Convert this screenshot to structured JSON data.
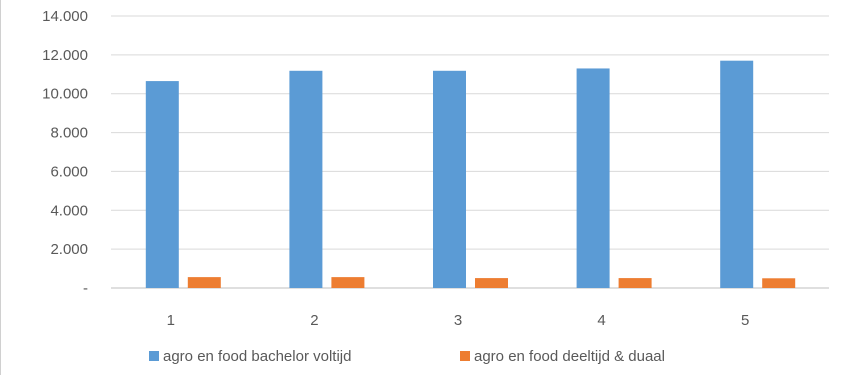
{
  "chart_data": {
    "type": "bar",
    "categories": [
      "1",
      "2",
      "3",
      "4",
      "5"
    ],
    "series": [
      {
        "name": "agro en food bachelor voltijd",
        "values": [
          10650,
          11180,
          11180,
          11300,
          11700
        ],
        "color": "#5b9bd5"
      },
      {
        "name": "agro en food deeltijd & duaal",
        "values": [
          560,
          560,
          510,
          510,
          500
        ],
        "color": "#ed7d31"
      }
    ],
    "y_ticks": [
      "-",
      "2.000",
      "4.000",
      "6.000",
      "8.000",
      "10.000",
      "12.000",
      "14.000"
    ],
    "ylim": [
      0,
      14000
    ],
    "grid": true,
    "legend_position": "bottom",
    "title": "",
    "xlabel": "",
    "ylabel": ""
  }
}
